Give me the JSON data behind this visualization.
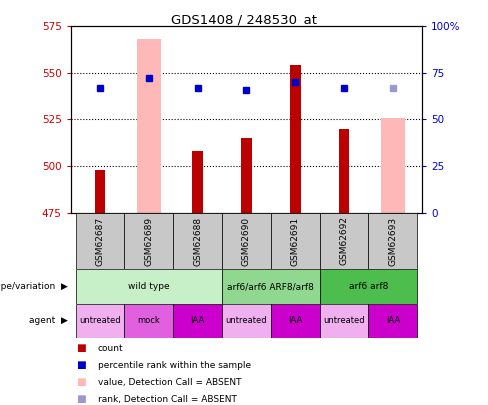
{
  "title": "GDS1408 / 248530_at",
  "samples": [
    "GSM62687",
    "GSM62689",
    "GSM62688",
    "GSM62690",
    "GSM62691",
    "GSM62692",
    "GSM62693"
  ],
  "ylim_left": [
    475,
    575
  ],
  "ylim_right": [
    0,
    100
  ],
  "yticks_left": [
    475,
    500,
    525,
    550,
    575
  ],
  "yticks_right": [
    0,
    25,
    50,
    75,
    100
  ],
  "yticklabels_right": [
    "0",
    "25",
    "50",
    "75",
    "100%"
  ],
  "bar_base": 475,
  "red_bars": [
    498,
    null,
    508,
    515,
    554,
    520,
    null
  ],
  "pink_bars": [
    null,
    568,
    null,
    null,
    null,
    null,
    526
  ],
  "blue_squares_y": [
    542,
    547,
    542,
    541,
    545,
    542,
    null
  ],
  "light_blue_squares_y": [
    null,
    null,
    null,
    null,
    null,
    null,
    542
  ],
  "genotype_groups": [
    {
      "label": "wild type",
      "start": 0,
      "end": 3,
      "color": "#c8f0c8"
    },
    {
      "label": "arf6/arf6 ARF8/arf8",
      "start": 3,
      "end": 5,
      "color": "#90d890"
    },
    {
      "label": "arf6 arf8",
      "start": 5,
      "end": 7,
      "color": "#4dbd4d"
    }
  ],
  "agent_labels": [
    "untreated",
    "mock",
    "IAA",
    "untreated",
    "IAA",
    "untreated",
    "IAA"
  ],
  "agent_colors": [
    "#f0b0f0",
    "#e060e0",
    "#cc00cc",
    "#f0b0f0",
    "#cc00cc",
    "#f0b0f0",
    "#cc00cc"
  ],
  "red_color": "#bb0000",
  "pink_color": "#ffb8b8",
  "blue_color": "#0000cc",
  "light_blue_color": "#9999cc",
  "left_tick_color": "#cc0000",
  "right_tick_color": "#0000cc",
  "sample_box_color": "#c8c8c8",
  "grid_dotted_vals": [
    500,
    525,
    550
  ],
  "red_bar_width": 0.22,
  "pink_bar_width": 0.5
}
